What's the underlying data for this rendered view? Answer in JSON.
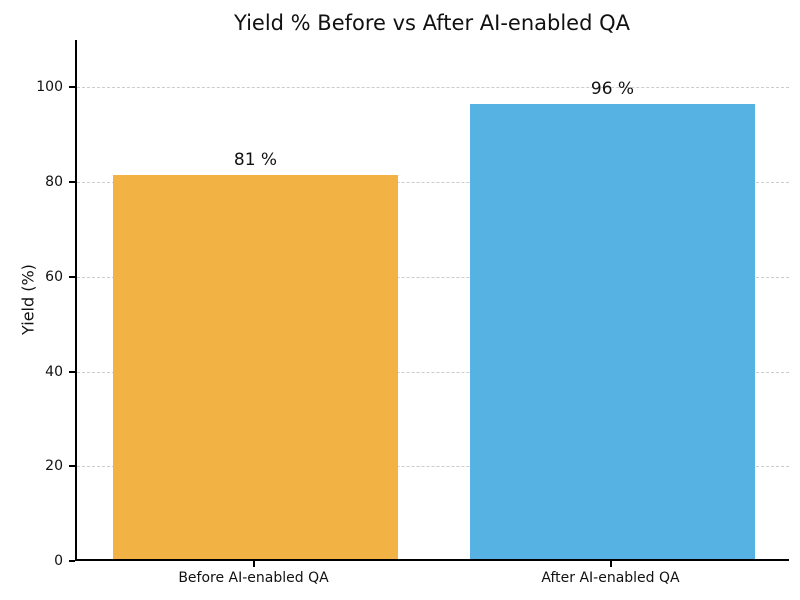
{
  "figure": {
    "background": "#ffffff",
    "text_color": "#111111",
    "spine_color": "#000000"
  },
  "chart_data": {
    "type": "bar",
    "title": "Yield % Before vs After AI-enabled QA",
    "xlabel": "",
    "ylabel": "Yield (%)",
    "categories": [
      "Before AI-enabled QA",
      "After AI-enabled QA"
    ],
    "values": [
      81,
      96
    ],
    "bar_labels": [
      "81 %",
      "96 %"
    ],
    "bar_colors": [
      "#f2b344",
      "#57b2e4"
    ],
    "ylim": [
      0,
      110
    ],
    "yticks": [
      0,
      20,
      40,
      60,
      80,
      100
    ],
    "bar_width_fraction": 0.8,
    "grid": {
      "axis": "y",
      "style": "dashed",
      "color": "#cccccc"
    },
    "legend": "none"
  }
}
